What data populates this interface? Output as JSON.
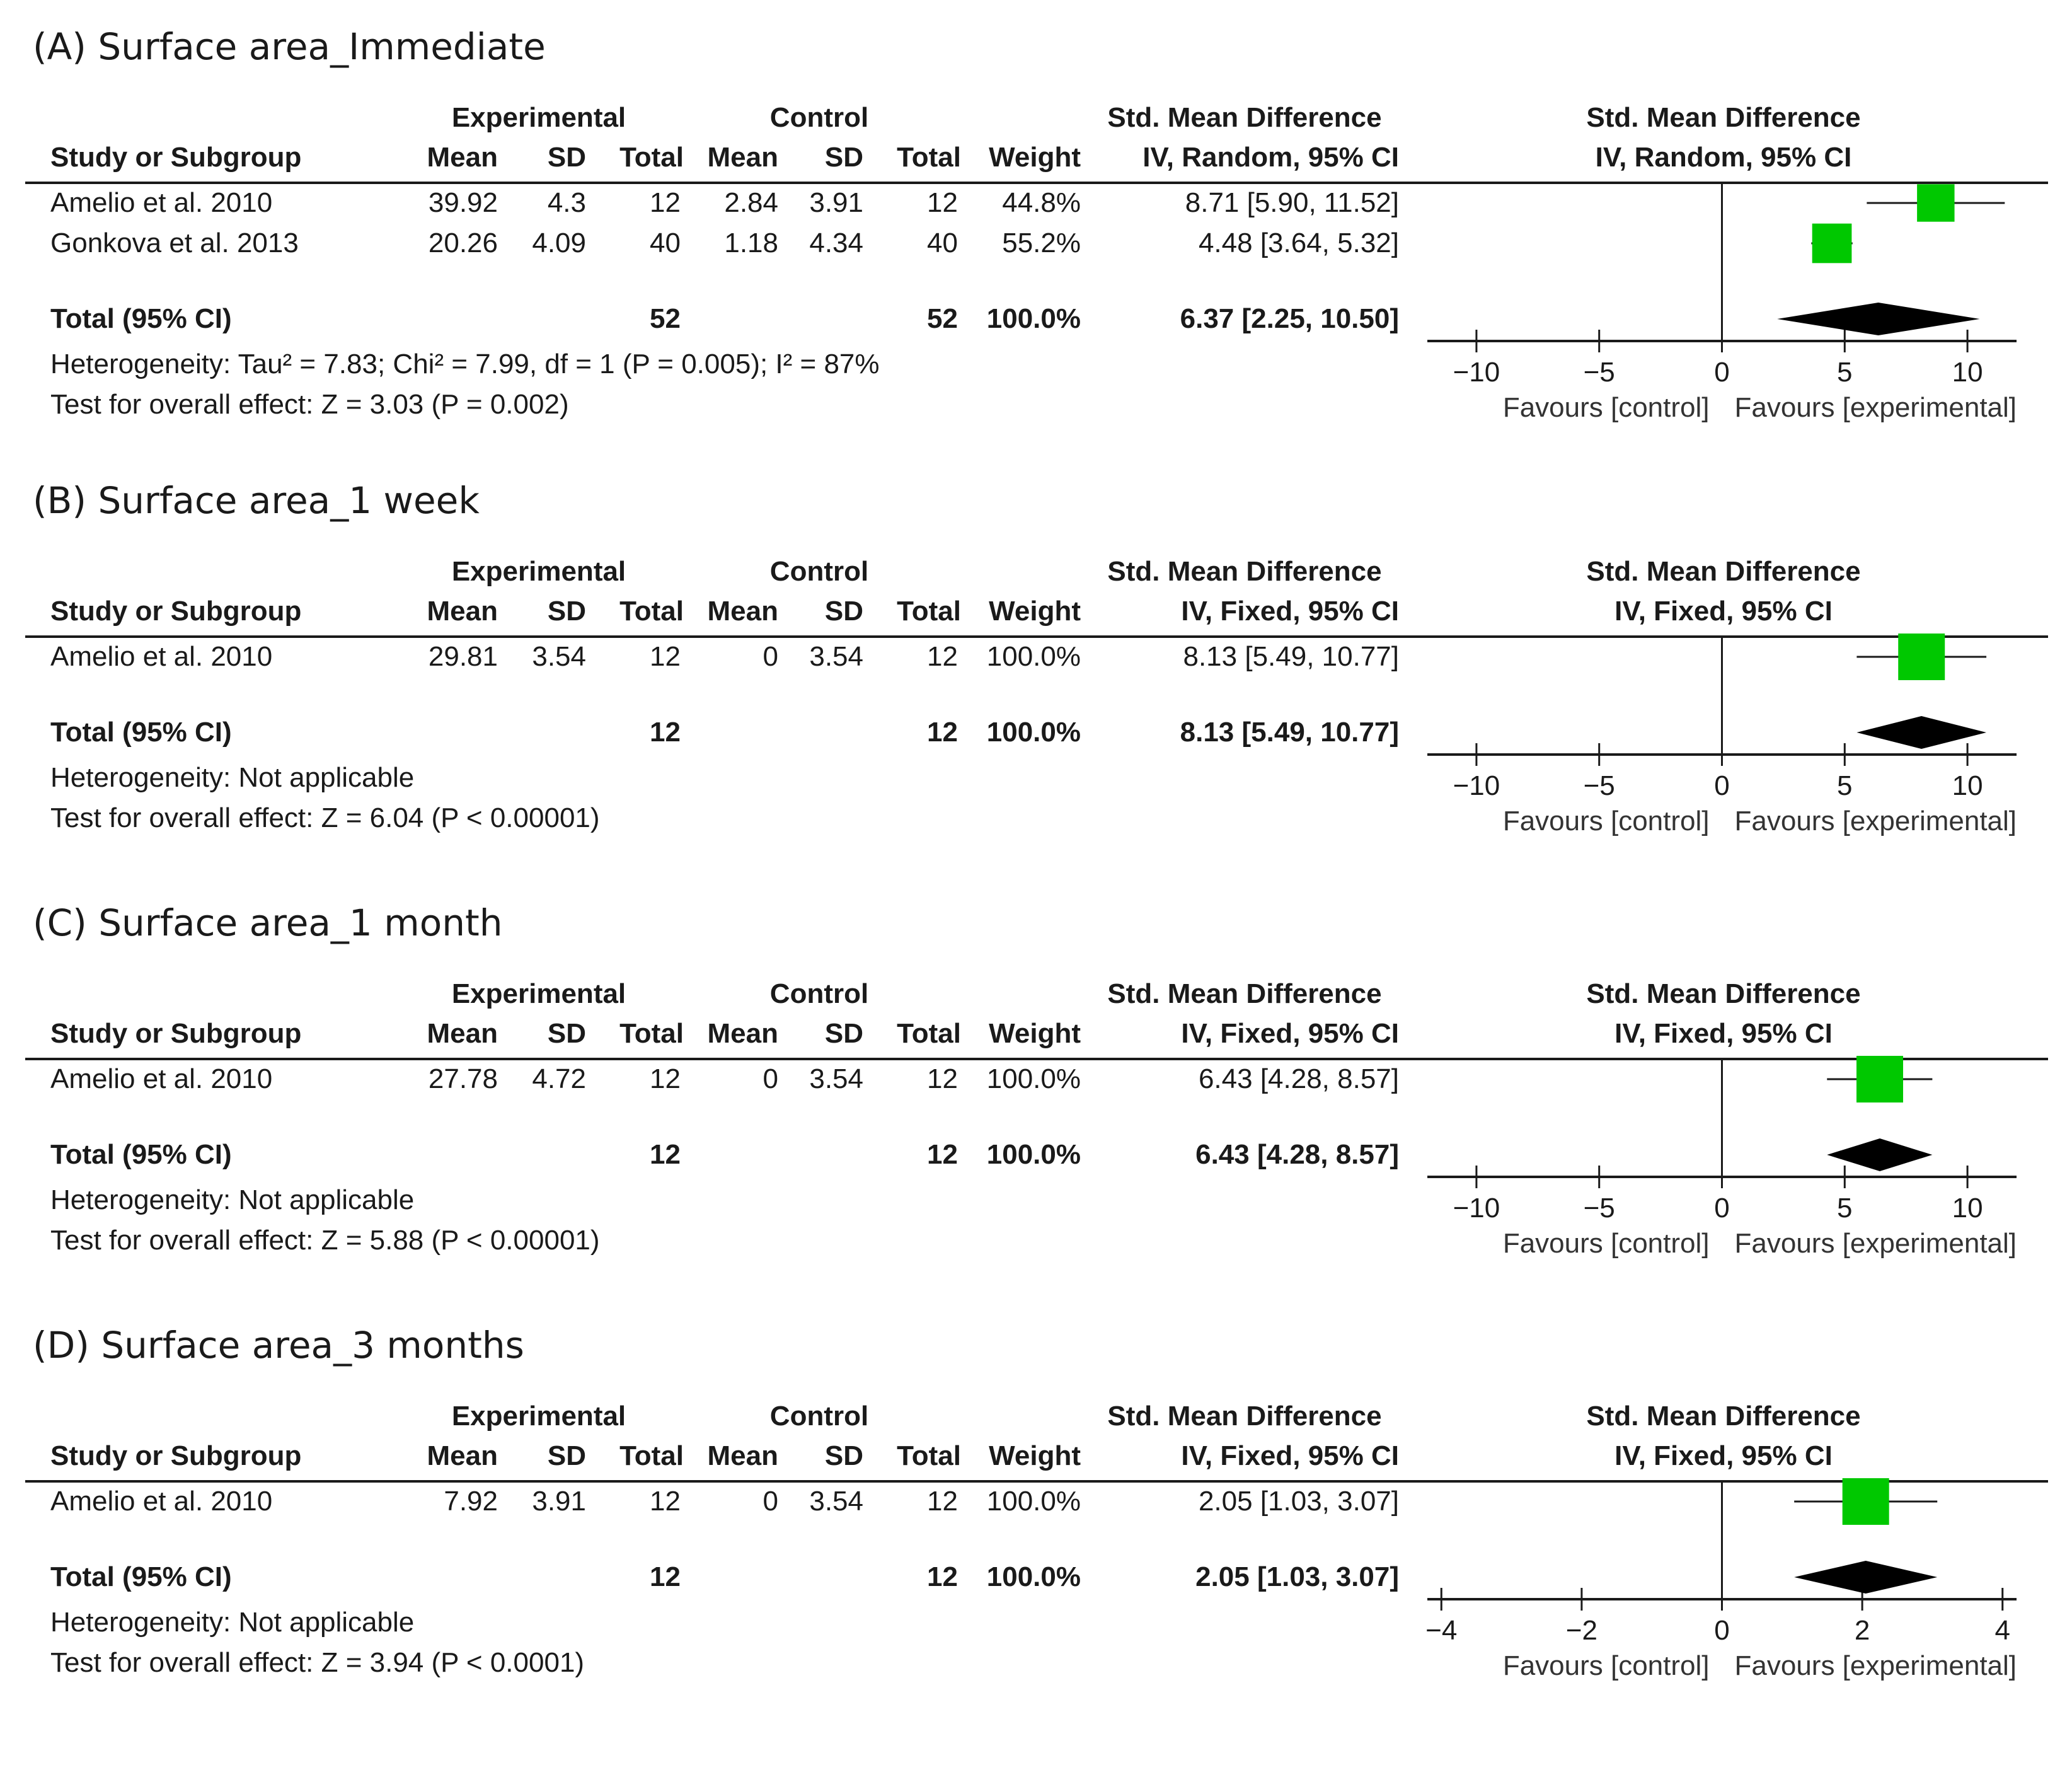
{
  "headers": {
    "experimental": "Experimental",
    "control": "Control",
    "smd": "Std. Mean Difference",
    "study": "Study or Subgroup",
    "mean": "Mean",
    "sd": "SD",
    "total": "Total",
    "weight": "Weight"
  },
  "chart_data": [
    {
      "type": "forest",
      "title": "(A) Surface area_Immediate",
      "method": "IV, Random, 95% CI",
      "studies": [
        {
          "name": "Amelio et al. 2010",
          "exp_mean": "39.92",
          "exp_sd": "4.3",
          "exp_total": "12",
          "ctl_mean": "2.84",
          "ctl_sd": "3.91",
          "ctl_total": "12",
          "weight": "44.8%",
          "ci_text": "8.71 [5.90, 11.52]",
          "est": 8.71,
          "lo": 5.9,
          "hi": 11.52,
          "w": 44.8
        },
        {
          "name": "Gonkova et al. 2013",
          "exp_mean": "20.26",
          "exp_sd": "4.09",
          "exp_total": "40",
          "ctl_mean": "1.18",
          "ctl_sd": "4.34",
          "ctl_total": "40",
          "weight": "55.2%",
          "ci_text": "4.48 [3.64, 5.32]",
          "est": 4.48,
          "lo": 3.64,
          "hi": 5.32,
          "w": 55.2
        }
      ],
      "total": {
        "label": "Total (95% CI)",
        "exp_total": "52",
        "ctl_total": "52",
        "weight": "100.0%",
        "ci_text": "6.37 [2.25, 10.50]",
        "est": 6.37,
        "lo": 2.25,
        "hi": 10.5
      },
      "heterogeneity": "Heterogeneity: Tau² = 7.83; Chi² = 7.99, df = 1 (P = 0.005); I² = 87%",
      "overall": "Test for overall effect: Z = 3.03 (P = 0.002)",
      "xlim": [
        -12,
        12
      ],
      "ticks": [
        -10,
        -5,
        0,
        5,
        10
      ],
      "tick_labels": [
        "−10",
        "−5",
        "0",
        "5",
        "10"
      ],
      "favours_left": "Favours [control]",
      "favours_right": "Favours [experimental]"
    },
    {
      "type": "forest",
      "title": "(B) Surface area_1 week",
      "method": "IV, Fixed, 95% CI",
      "studies": [
        {
          "name": "Amelio et al. 2010",
          "exp_mean": "29.81",
          "exp_sd": "3.54",
          "exp_total": "12",
          "ctl_mean": "0",
          "ctl_sd": "3.54",
          "ctl_total": "12",
          "weight": "100.0%",
          "ci_text": "8.13 [5.49, 10.77]",
          "est": 8.13,
          "lo": 5.49,
          "hi": 10.77,
          "w": 100
        }
      ],
      "total": {
        "label": "Total (95% CI)",
        "exp_total": "12",
        "ctl_total": "12",
        "weight": "100.0%",
        "ci_text": "8.13 [5.49, 10.77]",
        "est": 8.13,
        "lo": 5.49,
        "hi": 10.77
      },
      "heterogeneity": "Heterogeneity: Not applicable",
      "overall": "Test for overall effect: Z = 6.04 (P < 0.00001)",
      "xlim": [
        -12,
        12
      ],
      "ticks": [
        -10,
        -5,
        0,
        5,
        10
      ],
      "tick_labels": [
        "−10",
        "−5",
        "0",
        "5",
        "10"
      ],
      "favours_left": "Favours [control]",
      "favours_right": "Favours [experimental]"
    },
    {
      "type": "forest",
      "title": "(C) Surface area_1 month",
      "method": "IV, Fixed, 95% CI",
      "studies": [
        {
          "name": "Amelio et al. 2010",
          "exp_mean": "27.78",
          "exp_sd": "4.72",
          "exp_total": "12",
          "ctl_mean": "0",
          "ctl_sd": "3.54",
          "ctl_total": "12",
          "weight": "100.0%",
          "ci_text": "6.43 [4.28, 8.57]",
          "est": 6.43,
          "lo": 4.28,
          "hi": 8.57,
          "w": 100
        }
      ],
      "total": {
        "label": "Total (95% CI)",
        "exp_total": "12",
        "ctl_total": "12",
        "weight": "100.0%",
        "ci_text": "6.43 [4.28, 8.57]",
        "est": 6.43,
        "lo": 4.28,
        "hi": 8.57
      },
      "heterogeneity": "Heterogeneity: Not applicable",
      "overall": "Test for overall effect: Z = 5.88 (P < 0.00001)",
      "xlim": [
        -12,
        12
      ],
      "ticks": [
        -10,
        -5,
        0,
        5,
        10
      ],
      "tick_labels": [
        "−10",
        "−5",
        "0",
        "5",
        "10"
      ],
      "favours_left": "Favours [control]",
      "favours_right": "Favours [experimental]"
    },
    {
      "type": "forest",
      "title": "(D) Surface area_3 months",
      "method": "IV, Fixed, 95% CI",
      "studies": [
        {
          "name": "Amelio et al. 2010",
          "exp_mean": "7.92",
          "exp_sd": "3.91",
          "exp_total": "12",
          "ctl_mean": "0",
          "ctl_sd": "3.54",
          "ctl_total": "12",
          "weight": "100.0%",
          "ci_text": "2.05 [1.03, 3.07]",
          "est": 2.05,
          "lo": 1.03,
          "hi": 3.07,
          "w": 100
        }
      ],
      "total": {
        "label": "Total (95% CI)",
        "exp_total": "12",
        "ctl_total": "12",
        "weight": "100.0%",
        "ci_text": "2.05 [1.03, 3.07]",
        "est": 2.05,
        "lo": 1.03,
        "hi": 3.07
      },
      "heterogeneity": "Heterogeneity: Not applicable",
      "overall": "Test for overall effect: Z = 3.94 (P < 0.0001)",
      "xlim": [
        -4.2,
        4.2
      ],
      "ticks": [
        -4,
        -2,
        0,
        2,
        4
      ],
      "tick_labels": [
        "−4",
        "−2",
        "0",
        "2",
        "4"
      ],
      "favours_left": "Favours [control]",
      "favours_right": "Favours [experimental]"
    }
  ],
  "colors": {
    "marker": "#00c800",
    "diamond": "#000000",
    "line": "#1a1a1a"
  }
}
